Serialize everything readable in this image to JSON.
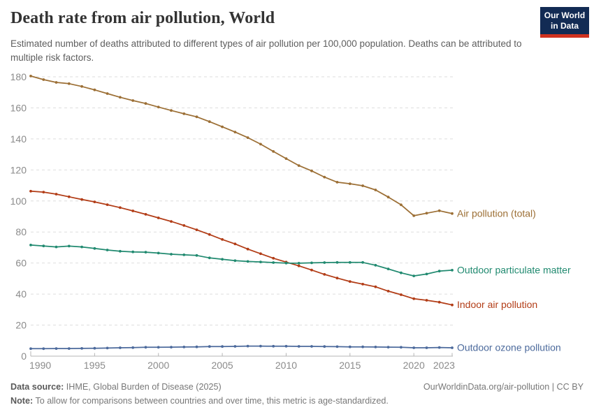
{
  "header": {
    "title": "Death rate from air pollution, World",
    "subtitle": "Estimated number of deaths attributed to different types of air pollution per 100,000 population. Deaths can be attributed to multiple risk factors."
  },
  "logo": {
    "line1": "Our World",
    "line2": "in Data",
    "bg_color": "#122B54",
    "stripe_color": "#D0321F"
  },
  "footer": {
    "source_label": "Data source:",
    "source_value": " IHME, Global Burden of Disease (2025)",
    "link": "OurWorldinData.org/air-pollution | CC BY",
    "note_label": "Note:",
    "note_value": " To allow for comparisons between countries and over time, this metric is age-standardized."
  },
  "chart_data": {
    "type": "line",
    "title": "Death rate from air pollution, World",
    "xlabel": "",
    "ylabel": "",
    "xlim": [
      1990,
      2023
    ],
    "ylim": [
      0,
      180
    ],
    "x_ticks": [
      1990,
      1995,
      2000,
      2005,
      2010,
      2015,
      2020,
      2023
    ],
    "y_ticks": [
      0,
      20,
      40,
      60,
      80,
      100,
      120,
      140,
      160,
      180
    ],
    "grid": "horizontal-dashed",
    "legend_position": "right-end-labels",
    "x": [
      1990,
      1991,
      1992,
      1993,
      1994,
      1995,
      1996,
      1997,
      1998,
      1999,
      2000,
      2001,
      2002,
      2003,
      2004,
      2005,
      2006,
      2007,
      2008,
      2009,
      2010,
      2011,
      2012,
      2013,
      2014,
      2015,
      2016,
      2017,
      2018,
      2019,
      2020,
      2021,
      2022,
      2023
    ],
    "series": [
      {
        "name": "Air pollution (total)",
        "color": "#9C6F35",
        "values": [
          180.5,
          178.2,
          176.4,
          175.6,
          173.8,
          171.6,
          169.2,
          166.8,
          164.7,
          162.8,
          160.5,
          158.3,
          156.2,
          154.2,
          151.1,
          147.8,
          144.4,
          140.8,
          136.6,
          131.9,
          127.3,
          122.8,
          119.4,
          115.4,
          112.1,
          111.1,
          109.8,
          107.1,
          102.5,
          97.5,
          90.5,
          92.1,
          93.7,
          91.9
        ]
      },
      {
        "name": "Indoor air pollution",
        "color": "#B23C16",
        "values": [
          106.3,
          105.7,
          104.4,
          102.7,
          101.0,
          99.4,
          97.6,
          95.7,
          93.6,
          91.4,
          89.1,
          86.8,
          84.2,
          81.4,
          78.4,
          75.2,
          72.3,
          69.0,
          66.0,
          63.1,
          60.6,
          58.2,
          55.5,
          52.7,
          50.3,
          48.1,
          46.4,
          44.7,
          41.9,
          39.6,
          37.0,
          36.0,
          34.8,
          33.0
        ]
      },
      {
        "name": "Outdoor particulate matter",
        "color": "#218A70",
        "values": [
          71.6,
          71.0,
          70.4,
          70.9,
          70.4,
          69.4,
          68.4,
          67.6,
          67.2,
          67.0,
          66.4,
          65.7,
          65.3,
          64.9,
          63.3,
          62.4,
          61.5,
          61.0,
          60.7,
          60.3,
          60.0,
          59.9,
          60.1,
          60.3,
          60.4,
          60.4,
          60.4,
          58.6,
          56.2,
          53.7,
          51.7,
          52.9,
          54.8,
          55.4
        ]
      },
      {
        "name": "Outdoor ozone pollution",
        "color": "#4C6A9C",
        "values": [
          4.8,
          4.8,
          4.9,
          4.9,
          5.0,
          5.1,
          5.2,
          5.4,
          5.5,
          5.7,
          5.7,
          5.8,
          5.9,
          6.0,
          6.2,
          6.2,
          6.3,
          6.5,
          6.5,
          6.4,
          6.4,
          6.3,
          6.3,
          6.2,
          6.1,
          6.0,
          6.0,
          5.9,
          5.8,
          5.7,
          5.4,
          5.4,
          5.6,
          5.4
        ]
      }
    ],
    "axis_color": "#b5b5b5",
    "grid_color": "#dedede",
    "tick_label_color": "#8b8b8b"
  }
}
